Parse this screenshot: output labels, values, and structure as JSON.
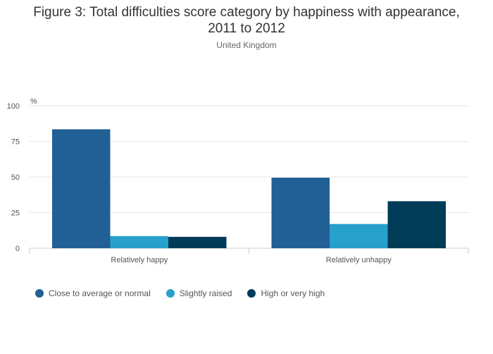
{
  "chart_data": {
    "type": "bar",
    "title_line1": "Figure 3: Total difficulties score category by happiness with appearance,",
    "title_line2": "2011 to 2012",
    "subtitle": "United Kingdom",
    "ylabel": "%",
    "xlabel": "",
    "ylim": [
      0,
      100
    ],
    "yticks": [
      "0",
      "25",
      "50",
      "75",
      "100"
    ],
    "categories": [
      "Relatively happy",
      "Relatively unhappy"
    ],
    "series": [
      {
        "name": "Close to average or normal",
        "color": "#206095",
        "values": [
          83.5,
          49.5
        ]
      },
      {
        "name": "Slightly raised",
        "color": "#27a0cc",
        "values": [
          8.5,
          17.0
        ]
      },
      {
        "name": "High or very high",
        "color": "#003c57",
        "values": [
          8.0,
          33.0
        ]
      }
    ],
    "grid": true,
    "legend_position": "bottom-left"
  }
}
